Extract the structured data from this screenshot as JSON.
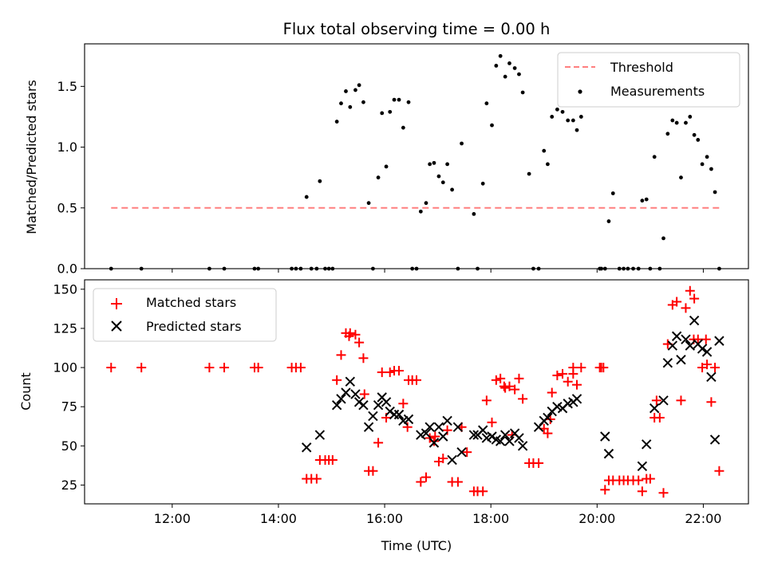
{
  "title": "Flux total observing time = 0.00 h",
  "chart_data": [
    {
      "type": "scatter",
      "ylabel": "Matched/Predicted stars",
      "xlim": [
        10.35,
        22.85
      ],
      "ylim": [
        0,
        1.85
      ],
      "y_ticks": [
        0,
        0.5,
        1.0,
        1.5
      ],
      "y_tick_labels": [
        "0.0",
        "0.5",
        "1.0",
        "1.5"
      ],
      "x_ticks": [
        12,
        14,
        16,
        18,
        20,
        22
      ],
      "legend_position": "top-right",
      "grid": false,
      "series": [
        {
          "name": "Threshold",
          "style": "dashed-line",
          "color": "#ff7f7f",
          "x": [
            10.85,
            22.3
          ],
          "y": [
            0.5,
            0.5
          ]
        },
        {
          "name": "Measurements",
          "style": "dot",
          "color": "#000000",
          "x": [
            10.85,
            11.42,
            12.7,
            12.98,
            13.55,
            13.62,
            14.25,
            14.33,
            14.42,
            14.53,
            14.62,
            14.72,
            14.78,
            14.88,
            14.95,
            15.02,
            15.1,
            15.18,
            15.27,
            15.35,
            15.45,
            15.52,
            15.6,
            15.7,
            15.78,
            15.88,
            15.95,
            16.03,
            16.1,
            16.18,
            16.27,
            16.35,
            16.45,
            16.52,
            16.6,
            16.68,
            16.78,
            16.85,
            16.93,
            17.02,
            17.1,
            17.18,
            17.27,
            17.38,
            17.45,
            17.68,
            17.75,
            17.85,
            17.92,
            18.02,
            18.1,
            18.18,
            18.27,
            18.35,
            18.45,
            18.53,
            18.6,
            18.72,
            18.8,
            18.9,
            19.0,
            19.07,
            19.15,
            19.25,
            19.35,
            19.45,
            19.55,
            19.62,
            19.7,
            20.05,
            20.08,
            20.15,
            20.22,
            20.3,
            20.42,
            20.5,
            20.58,
            20.68,
            20.78,
            20.85,
            20.93,
            21.0,
            21.08,
            21.18,
            21.25,
            21.33,
            21.42,
            21.5,
            21.58,
            21.67,
            21.75,
            21.83,
            21.9,
            21.98,
            22.07,
            22.15,
            22.22,
            22.3
          ],
          "y": [
            0,
            0,
            0,
            0,
            0,
            0,
            0,
            0,
            0,
            0.59,
            0,
            0,
            0.72,
            0,
            0,
            0,
            1.21,
            1.36,
            1.46,
            1.33,
            1.47,
            1.51,
            1.37,
            0.54,
            0,
            0.75,
            1.28,
            0.84,
            1.29,
            1.39,
            1.39,
            1.16,
            1.37,
            0,
            0,
            0.47,
            0.54,
            0.86,
            0.87,
            0.76,
            0.71,
            0.86,
            0.65,
            0,
            1.03,
            0.45,
            0,
            0.7,
            1.36,
            1.18,
            1.67,
            1.75,
            1.58,
            1.69,
            1.65,
            1.6,
            1.45,
            0.78,
            0,
            0,
            0.97,
            0.86,
            1.25,
            1.31,
            1.29,
            1.22,
            1.22,
            1.14,
            1.25,
            0,
            0,
            0,
            0.39,
            0.62,
            0,
            0,
            0,
            0,
            0,
            0.56,
            0.57,
            0,
            0.92,
            0,
            0.25,
            1.11,
            1.22,
            1.2,
            0.75,
            1.2,
            1.25,
            1.1,
            1.06,
            0.86,
            0.92,
            0.82,
            0.63,
            0
          ]
        }
      ]
    },
    {
      "type": "scatter",
      "xlabel": "Time (UTC)",
      "ylabel": "Count",
      "xlim": [
        10.35,
        22.85
      ],
      "ylim": [
        13,
        156
      ],
      "y_ticks": [
        25,
        50,
        75,
        100,
        125,
        150
      ],
      "y_tick_labels": [
        "25",
        "50",
        "75",
        "100",
        "125",
        "150"
      ],
      "x_ticks": [
        12,
        14,
        16,
        18,
        20,
        22
      ],
      "x_tick_labels": [
        "12:00",
        "14:00",
        "16:00",
        "18:00",
        "20:00",
        "22:00"
      ],
      "legend_position": "top-left",
      "grid": false,
      "series": [
        {
          "name": "Matched stars",
          "marker": "+",
          "color": "#ff0000",
          "x": [
            10.85,
            11.42,
            12.7,
            12.98,
            13.55,
            13.62,
            14.25,
            14.33,
            14.42,
            14.53,
            14.62,
            14.72,
            14.78,
            14.88,
            14.95,
            15.02,
            15.1,
            15.18,
            15.27,
            15.35,
            15.45,
            15.52,
            15.6,
            15.7,
            15.78,
            15.88,
            15.95,
            16.03,
            16.1,
            16.18,
            16.27,
            16.35,
            16.45,
            16.52,
            16.6,
            16.68,
            16.78,
            16.85,
            16.93,
            17.02,
            17.1,
            17.18,
            17.27,
            17.38,
            17.45,
            17.68,
            17.75,
            17.85,
            17.92,
            18.02,
            18.1,
            18.18,
            18.27,
            18.35,
            18.45,
            18.53,
            18.6,
            18.72,
            18.8,
            18.9,
            19.0,
            19.07,
            19.15,
            19.25,
            19.35,
            19.45,
            19.55,
            19.62,
            19.7,
            20.05,
            20.08,
            20.15,
            20.22,
            20.3,
            20.42,
            20.5,
            20.58,
            20.68,
            20.78,
            20.85,
            20.93,
            21.0,
            21.08,
            21.18,
            21.25,
            21.33,
            21.42,
            21.5,
            21.58,
            21.67,
            21.75,
            21.83,
            21.9,
            21.98,
            22.07,
            22.15,
            22.22,
            22.3,
            15.33,
            15.62,
            16.43,
            16.95,
            18.25,
            19.12,
            19.55,
            20.12,
            21.12,
            21.82,
            22.05,
            17.55,
            18.4
          ],
          "y": [
            100,
            100,
            100,
            100,
            100,
            100,
            100,
            100,
            100,
            29,
            29,
            29,
            41,
            41,
            41,
            41,
            92,
            108,
            122,
            122,
            121,
            116,
            106,
            34,
            34,
            52,
            97,
            68,
            97,
            98,
            98,
            77,
            92,
            92,
            92,
            27,
            30,
            55,
            53,
            40,
            42,
            60,
            27,
            27,
            62,
            21,
            21,
            21,
            79,
            65,
            92,
            93,
            87,
            88,
            86,
            93,
            80,
            39,
            39,
            39,
            61,
            58,
            84,
            95,
            96,
            91,
            96,
            89,
            100,
            100,
            100,
            22,
            28,
            28,
            28,
            28,
            28,
            28,
            28,
            21,
            29,
            29,
            68,
            68,
            20,
            115,
            140,
            142,
            79,
            138,
            149,
            144,
            118,
            100,
            102,
            78,
            100,
            34,
            120,
            83,
            62,
            56,
            88,
            67,
            100,
            100,
            79,
            118,
            118,
            46,
            57
          ]
        },
        {
          "name": "Predicted stars",
          "marker": "x",
          "color": "#000000",
          "x": [
            14.53,
            14.78,
            15.1,
            15.18,
            15.27,
            15.35,
            15.45,
            15.52,
            15.6,
            15.7,
            15.78,
            15.88,
            15.95,
            16.03,
            16.1,
            16.18,
            16.27,
            16.35,
            16.45,
            16.68,
            16.78,
            16.85,
            16.93,
            17.02,
            17.1,
            17.18,
            17.27,
            17.38,
            17.45,
            17.68,
            17.75,
            17.85,
            17.92,
            18.02,
            18.1,
            18.18,
            18.27,
            18.35,
            18.45,
            18.53,
            18.6,
            18.9,
            19.0,
            19.07,
            19.15,
            19.25,
            19.35,
            19.45,
            19.55,
            19.62,
            20.15,
            20.22,
            20.85,
            20.93,
            21.08,
            21.25,
            21.33,
            21.42,
            21.5,
            21.58,
            21.67,
            21.75,
            21.83,
            21.9,
            21.98,
            22.07,
            22.15,
            22.22,
            22.3
          ],
          "y": [
            49,
            57,
            76,
            80,
            84,
            91,
            83,
            78,
            76,
            62,
            69,
            76,
            81,
            78,
            72,
            70,
            70,
            66,
            67,
            57,
            58,
            62,
            52,
            62,
            56,
            66,
            41,
            62,
            46,
            57,
            57,
            60,
            55,
            56,
            54,
            53,
            57,
            53,
            58,
            55,
            50,
            62,
            66,
            68,
            72,
            75,
            74,
            77,
            78,
            80,
            56,
            45,
            37,
            51,
            74,
            79,
            103,
            114,
            120,
            105,
            118,
            114,
            130,
            115,
            112,
            110,
            94,
            54,
            117
          ]
        }
      ]
    }
  ]
}
